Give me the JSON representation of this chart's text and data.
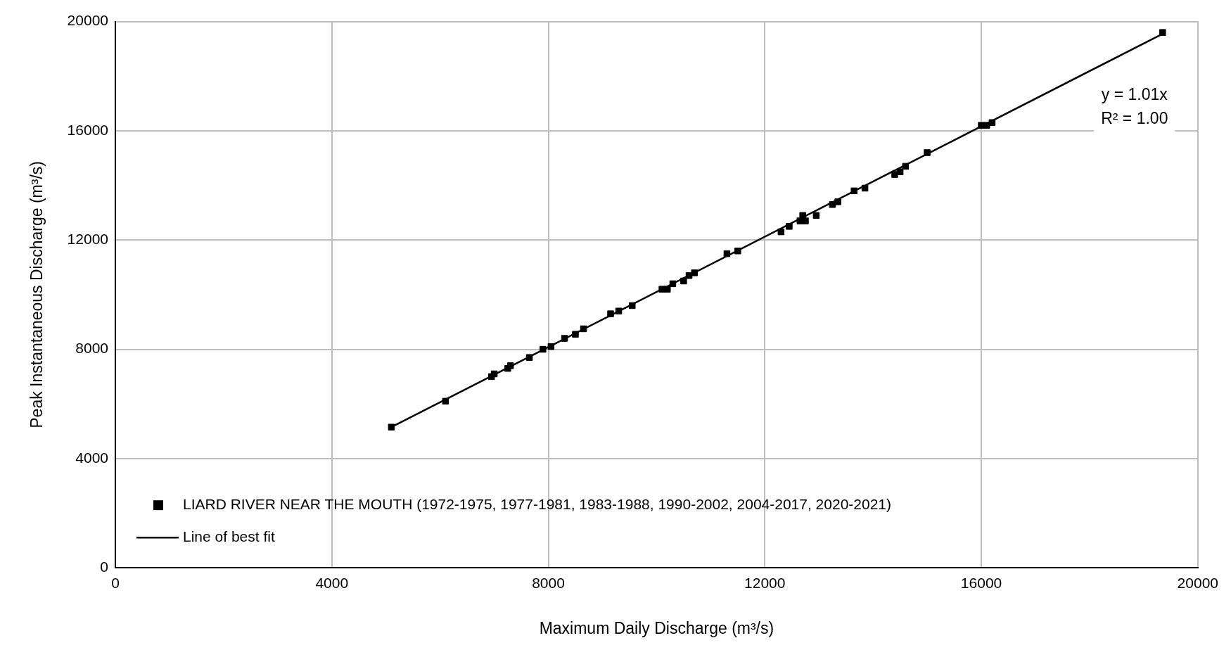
{
  "chart_data": {
    "type": "scatter",
    "xlabel": "Maximum Daily Discharge (m³/s)",
    "ylabel": "Peak Instantaneous Discharge (m³/s)",
    "xlim": [
      0,
      20000
    ],
    "xticks": [
      0,
      4000,
      8000,
      12000,
      16000,
      20000
    ],
    "ylim": [
      0,
      20000
    ],
    "yticks": [
      0,
      4000,
      8000,
      12000,
      16000,
      20000
    ],
    "grid": true,
    "legend": "bottom left",
    "marker": "square",
    "annotations": [
      "y = 1.01x",
      "R² = 1.00"
    ],
    "series": [
      {
        "name": "LIARD RIVER NEAR THE MOUTH (1972-1975, 1977-1981, 1983-1988, 1990-2002, 2004-2017, 2020-2021)",
        "color": "#000000",
        "x": [
          5100,
          6100,
          6950,
          7000,
          7250,
          7300,
          7650,
          7900,
          8050,
          8300,
          8500,
          8650,
          9150,
          9300,
          9550,
          10100,
          10200,
          10300,
          10500,
          10600,
          10700,
          11300,
          11500,
          12300,
          12450,
          12650,
          12700,
          12750,
          12950,
          13250,
          13350,
          13650,
          13850,
          14400,
          14500,
          14600,
          15000,
          16000,
          16100,
          16200,
          19350
        ],
        "values": [
          5150,
          6100,
          7000,
          7100,
          7300,
          7400,
          7700,
          8000,
          8100,
          8400,
          8550,
          8750,
          9300,
          9400,
          9600,
          10200,
          10200,
          10400,
          10500,
          10700,
          10800,
          11500,
          11600,
          12300,
          12500,
          12700,
          12900,
          12700,
          12900,
          13300,
          13400,
          13800,
          13900,
          14400,
          14500,
          14700,
          15200,
          16200,
          16200,
          16300,
          19600
        ]
      },
      {
        "name": "Line of best fit",
        "color": "#000000",
        "type": "line",
        "marker": "none",
        "x": [
          5100,
          19350
        ],
        "values": [
          5150,
          19550
        ]
      }
    ]
  }
}
